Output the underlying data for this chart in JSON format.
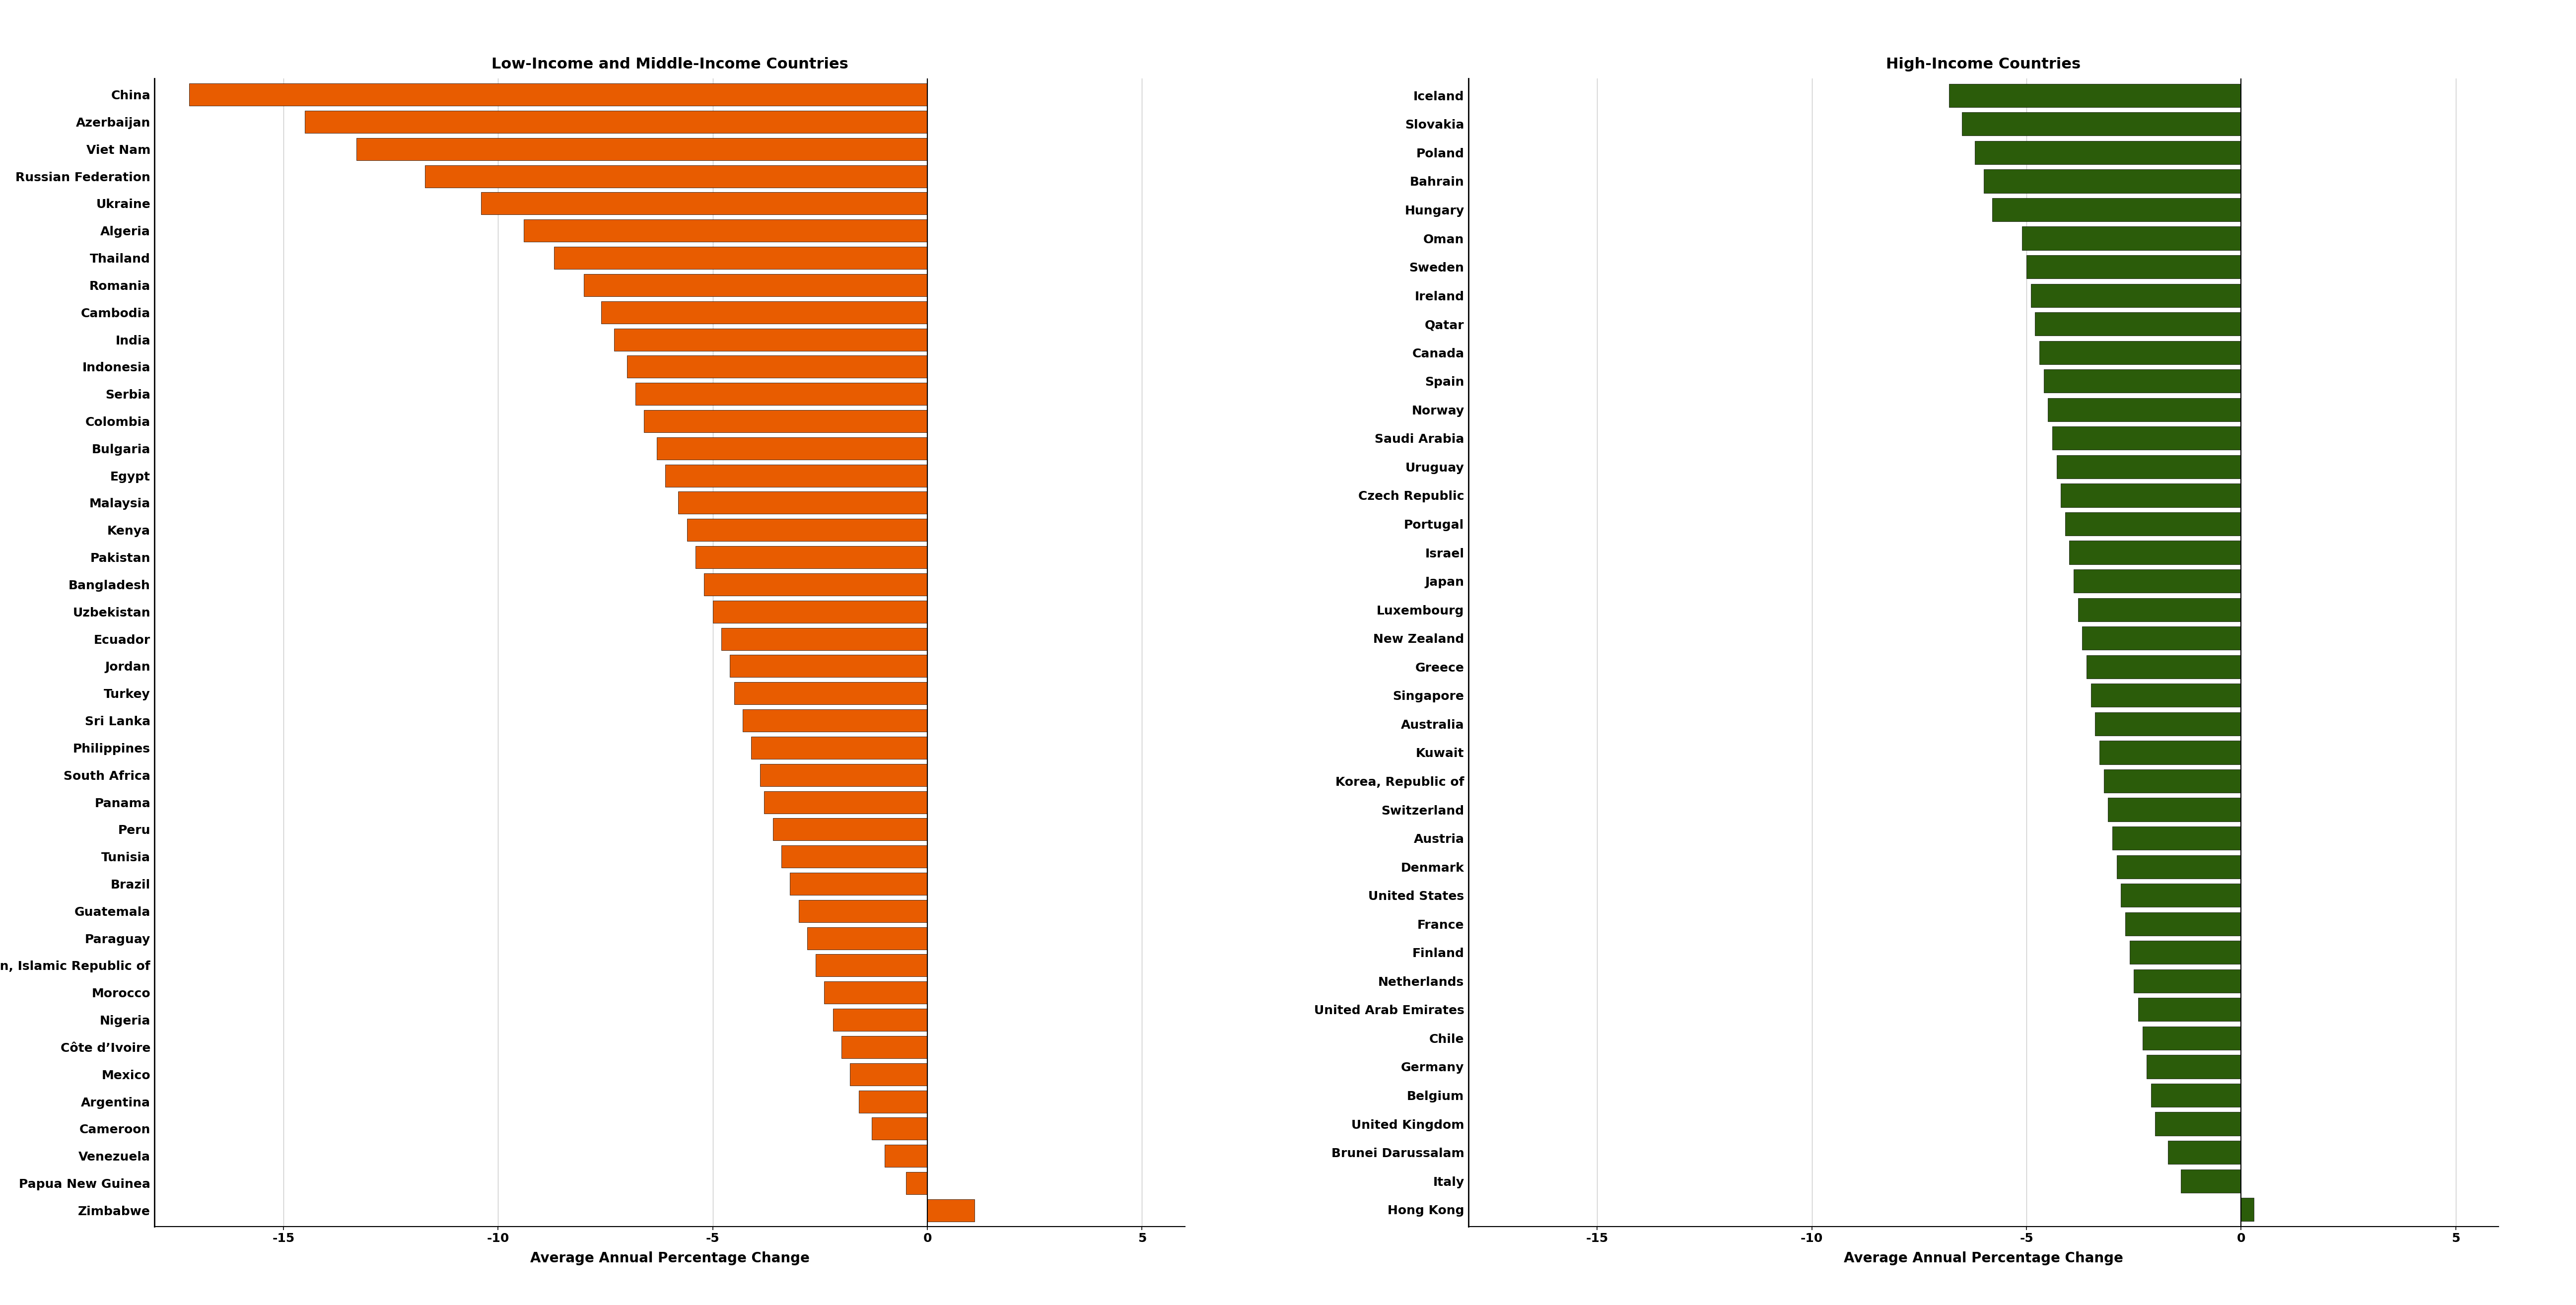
{
  "lmic_countries": [
    "China",
    "Azerbaijan",
    "Viet Nam",
    "Russian Federation",
    "Ukraine",
    "Algeria",
    "Thailand",
    "Romania",
    "Cambodia",
    "India",
    "Indonesia",
    "Serbia",
    "Colombia",
    "Bulgaria",
    "Egypt",
    "Malaysia",
    "Kenya",
    "Pakistan",
    "Bangladesh",
    "Uzbekistan",
    "Ecuador",
    "Jordan",
    "Turkey",
    "Sri Lanka",
    "Philippines",
    "South Africa",
    "Panama",
    "Peru",
    "Tunisia",
    "Brazil",
    "Guatemala",
    "Paraguay",
    "Iran, Islamic Republic of",
    "Morocco",
    "Nigeria",
    "Côte d’Ivoire",
    "Mexico",
    "Argentina",
    "Cameroon",
    "Venezuela",
    "Papua New Guinea",
    "Zimbabwe"
  ],
  "lmic_values": [
    -17.2,
    -14.5,
    -13.3,
    -11.7,
    -10.4,
    -9.4,
    -8.7,
    -8.0,
    -7.6,
    -7.3,
    -7.0,
    -6.8,
    -6.6,
    -6.3,
    -6.1,
    -5.8,
    -5.6,
    -5.4,
    -5.2,
    -5.0,
    -4.8,
    -4.6,
    -4.5,
    -4.3,
    -4.1,
    -3.9,
    -3.8,
    -3.6,
    -3.4,
    -3.2,
    -3.0,
    -2.8,
    -2.6,
    -2.4,
    -2.2,
    -2.0,
    -1.8,
    -1.6,
    -1.3,
    -1.0,
    -0.5,
    1.1
  ],
  "hic_countries": [
    "Iceland",
    "Slovakia",
    "Poland",
    "Bahrain",
    "Hungary",
    "Oman",
    "Sweden",
    "Ireland",
    "Qatar",
    "Canada",
    "Spain",
    "Norway",
    "Saudi Arabia",
    "Uruguay",
    "Czech Republic",
    "Portugal",
    "Israel",
    "Japan",
    "Luxembourg",
    "New Zealand",
    "Greece",
    "Singapore",
    "Australia",
    "Kuwait",
    "Korea, Republic of",
    "Switzerland",
    "Austria",
    "Denmark",
    "United States",
    "France",
    "Finland",
    "Netherlands",
    "United Arab Emirates",
    "Chile",
    "Germany",
    "Belgium",
    "United Kingdom",
    "Brunei Darussalam",
    "Italy",
    "Hong Kong"
  ],
  "hic_values": [
    -6.8,
    -6.5,
    -6.2,
    -6.0,
    -5.8,
    -5.1,
    -5.0,
    -4.9,
    -4.8,
    -4.7,
    -4.6,
    -4.5,
    -4.4,
    -4.3,
    -4.2,
    -4.1,
    -4.0,
    -3.9,
    -3.8,
    -3.7,
    -3.6,
    -3.5,
    -3.4,
    -3.3,
    -3.2,
    -3.1,
    -3.0,
    -2.9,
    -2.8,
    -2.7,
    -2.6,
    -2.5,
    -2.4,
    -2.3,
    -2.2,
    -2.1,
    -2.0,
    -1.7,
    -1.4,
    0.3
  ],
  "lmic_color": "#E85C00",
  "hic_color": "#2B5C0A",
  "lmic_title": "Low-Income and Middle-Income Countries",
  "hic_title": "High-Income Countries",
  "xlabel": "Average Annual Percentage Change",
  "xlim": [
    -18,
    6
  ],
  "xticks": [
    -15,
    -10,
    -5,
    0,
    5
  ],
  "bar_height": 0.82,
  "title_fontsize": 22,
  "tick_fontsize": 18,
  "label_fontsize": 20
}
